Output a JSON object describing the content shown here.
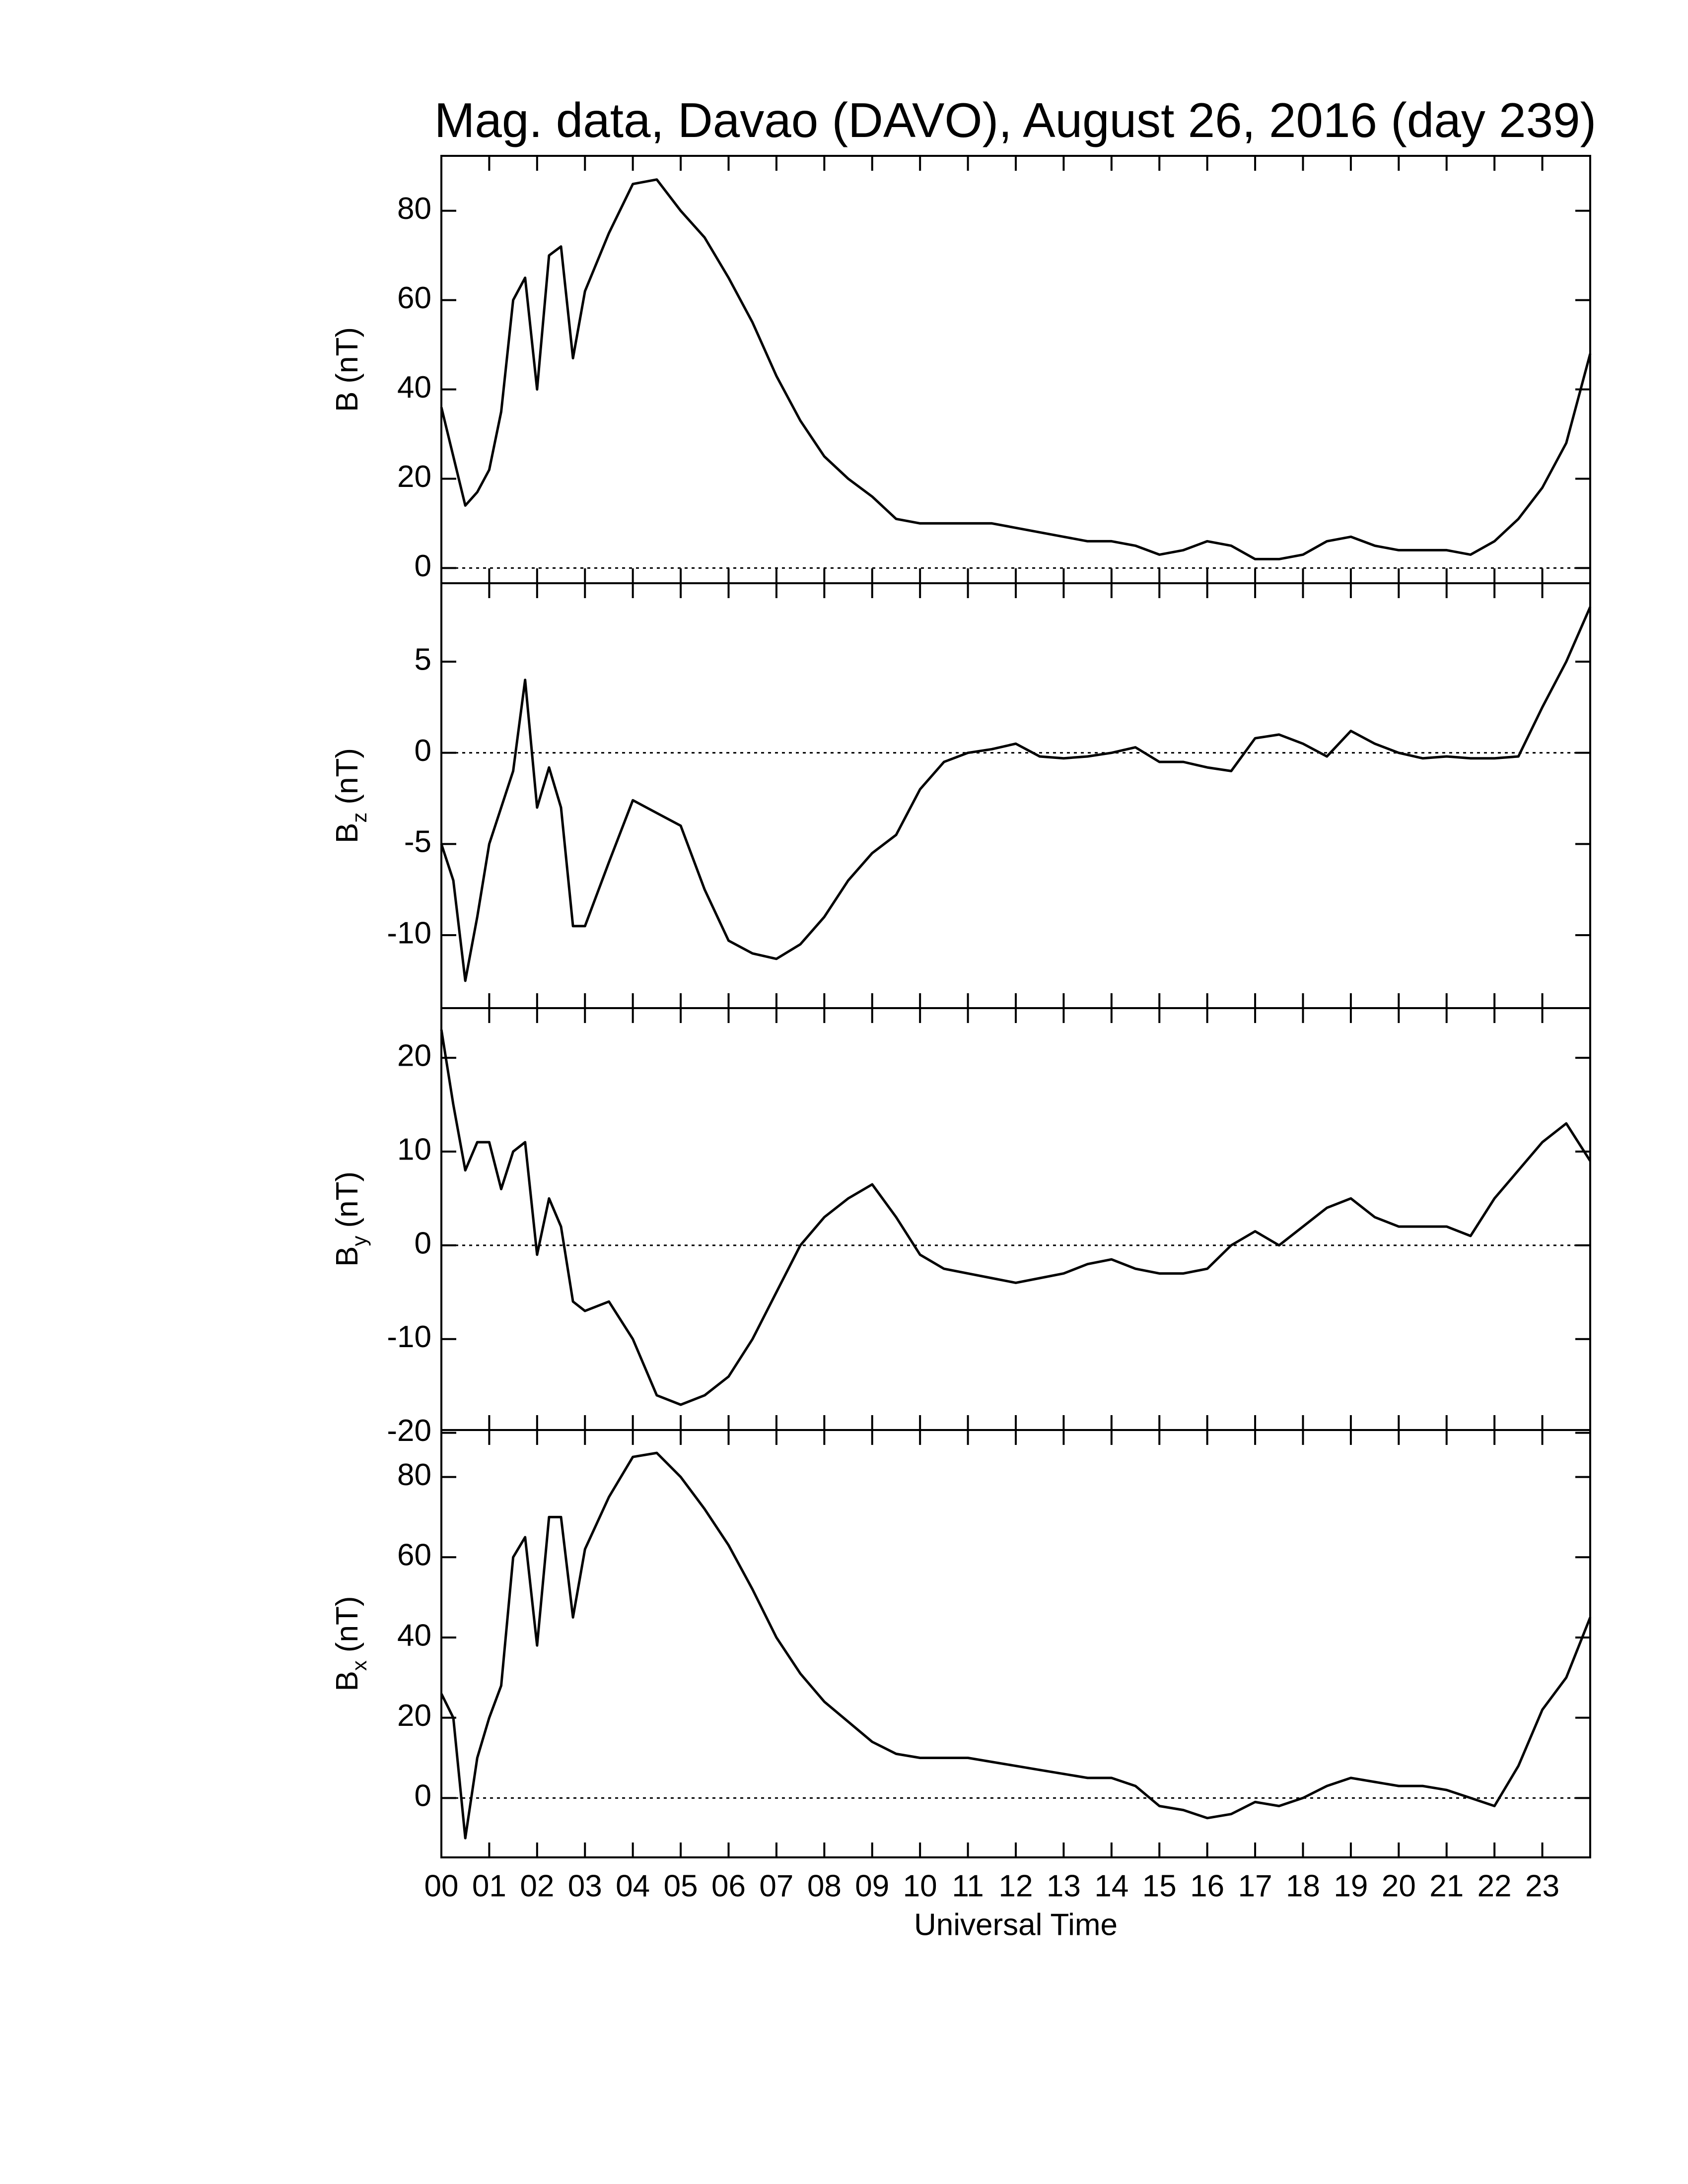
{
  "chart_data": [
    {
      "type": "line",
      "title": "Mag. data, Davao (DAVO), August 26, 2016 (day 239)",
      "ylabel": "B",
      "ylabel_unit": "(nT)",
      "color": "#000000",
      "reference_line": 0,
      "xlim": [
        0,
        24
      ],
      "ylim": [
        -3.4,
        92.3
      ],
      "yticks": [
        0,
        20,
        40,
        60,
        80
      ],
      "x": [
        0,
        0.25,
        0.5,
        0.75,
        1,
        1.25,
        1.5,
        1.75,
        2,
        2.25,
        2.5,
        2.75,
        3,
        3.5,
        4,
        4.5,
        5,
        5.5,
        6,
        6.5,
        7,
        7.5,
        8,
        8.5,
        9,
        9.5,
        10,
        10.5,
        11,
        11.5,
        12,
        12.5,
        13,
        13.5,
        14,
        14.5,
        15,
        15.5,
        16,
        16.5,
        17,
        17.5,
        18,
        18.5,
        19,
        19.5,
        20,
        20.5,
        21,
        21.5,
        22,
        22.5,
        23,
        23.5,
        24
      ],
      "values": [
        36,
        25,
        14,
        17,
        22,
        35,
        60,
        65,
        40,
        70,
        72,
        47,
        62,
        75,
        86,
        87,
        80,
        74,
        65,
        55,
        43,
        33,
        25,
        20,
        16,
        11,
        10,
        10,
        10,
        10,
        9,
        8,
        7,
        6,
        6,
        5,
        3,
        4,
        6,
        5,
        2,
        2,
        3,
        6,
        7,
        5,
        4,
        4,
        4,
        3,
        6,
        11,
        18,
        28,
        48
      ]
    },
    {
      "type": "line",
      "ylabel": "B",
      "ylabel_sub": "z",
      "ylabel_unit": "(nT)",
      "color": "#000000",
      "reference_line": 0,
      "xlim": [
        0,
        24
      ],
      "ylim": [
        -14.0,
        9.3
      ],
      "yticks": [
        -10,
        -5,
        0,
        5
      ],
      "x": [
        0,
        0.25,
        0.5,
        0.75,
        1,
        1.25,
        1.5,
        1.75,
        2,
        2.25,
        2.5,
        2.75,
        3,
        3.5,
        4,
        4.5,
        5,
        5.5,
        6,
        6.5,
        7,
        7.5,
        8,
        8.5,
        9,
        9.5,
        10,
        10.5,
        11,
        11.5,
        12,
        12.5,
        13,
        13.5,
        14,
        14.5,
        15,
        15.5,
        16,
        16.5,
        17,
        17.5,
        18,
        18.5,
        19,
        19.5,
        20,
        20.5,
        21,
        21.5,
        22,
        22.5,
        23,
        23.5,
        24
      ],
      "values": [
        -5,
        -7,
        -12.5,
        -9,
        -5,
        -3,
        -1,
        4,
        -3,
        -0.8,
        -3,
        -9.5,
        -9.5,
        -6,
        -2.6,
        -3.3,
        -4,
        -7.5,
        -10.3,
        -11,
        -11.3,
        -10.5,
        -9,
        -7,
        -5.5,
        -4.5,
        -2,
        -0.5,
        0,
        0.2,
        0.5,
        -0.2,
        -0.3,
        -0.2,
        0,
        0.3,
        -0.5,
        -0.5,
        -0.8,
        -1,
        0.8,
        1,
        0.5,
        -0.2,
        1.2,
        0.5,
        0,
        -0.3,
        -0.2,
        -0.3,
        -0.3,
        -0.2,
        2.5,
        5,
        8
      ]
    },
    {
      "type": "line",
      "ylabel": "B",
      "ylabel_sub": "y",
      "ylabel_unit": "(nT)",
      "color": "#000000",
      "reference_line": 0,
      "xlim": [
        0,
        24
      ],
      "ylim": [
        -19.7,
        25.3
      ],
      "yticks": [
        -20,
        -10,
        0,
        10,
        20
      ],
      "x": [
        0,
        0.25,
        0.5,
        0.75,
        1,
        1.25,
        1.5,
        1.75,
        2,
        2.25,
        2.5,
        2.75,
        3,
        3.5,
        4,
        4.5,
        5,
        5.5,
        6,
        6.5,
        7,
        7.5,
        8,
        8.5,
        9,
        9.5,
        10,
        10.5,
        11,
        11.5,
        12,
        12.5,
        13,
        13.5,
        14,
        14.5,
        15,
        15.5,
        16,
        16.5,
        17,
        17.5,
        18,
        18.5,
        19,
        19.5,
        20,
        20.5,
        21,
        21.5,
        22,
        22.5,
        23,
        23.5,
        24
      ],
      "values": [
        23,
        15,
        8,
        11,
        11,
        6,
        10,
        11,
        -1,
        5,
        2,
        -6,
        -7,
        -6,
        -10,
        -16,
        -17,
        -16,
        -14,
        -10,
        -5,
        0,
        3,
        5,
        6.5,
        3,
        -1,
        -2.5,
        -3,
        -3.5,
        -4,
        -3.5,
        -3,
        -2,
        -1.5,
        -2.5,
        -3,
        -3,
        -2.5,
        0,
        1.5,
        0,
        2,
        4,
        5,
        3,
        2,
        2,
        2,
        1,
        5,
        8,
        11,
        13,
        9
      ]
    },
    {
      "type": "line",
      "ylabel": "B",
      "ylabel_sub": "x",
      "ylabel_unit": "(nT)",
      "xlabel": "Universal Time",
      "color": "#000000",
      "reference_line": 0,
      "xlim": [
        0,
        24
      ],
      "ylim": [
        -14.8,
        91.7
      ],
      "yticks": [
        0,
        20,
        40,
        60,
        80
      ],
      "xticks": [
        {
          "value": 0,
          "label": "00"
        },
        {
          "value": 1,
          "label": "01"
        },
        {
          "value": 2,
          "label": "02"
        },
        {
          "value": 3,
          "label": "03"
        },
        {
          "value": 4,
          "label": "04"
        },
        {
          "value": 5,
          "label": "05"
        },
        {
          "value": 6,
          "label": "06"
        },
        {
          "value": 7,
          "label": "07"
        },
        {
          "value": 8,
          "label": "08"
        },
        {
          "value": 9,
          "label": "09"
        },
        {
          "value": 10,
          "label": "10"
        },
        {
          "value": 11,
          "label": "11"
        },
        {
          "value": 12,
          "label": "12"
        },
        {
          "value": 13,
          "label": "13"
        },
        {
          "value": 14,
          "label": "14"
        },
        {
          "value": 15,
          "label": "15"
        },
        {
          "value": 16,
          "label": "16"
        },
        {
          "value": 17,
          "label": "17"
        },
        {
          "value": 18,
          "label": "18"
        },
        {
          "value": 19,
          "label": "19"
        },
        {
          "value": 20,
          "label": "20"
        },
        {
          "value": 21,
          "label": "21"
        },
        {
          "value": 22,
          "label": "22"
        },
        {
          "value": 23,
          "label": "23"
        }
      ],
      "x": [
        0,
        0.25,
        0.5,
        0.75,
        1,
        1.25,
        1.5,
        1.75,
        2,
        2.25,
        2.5,
        2.75,
        3,
        3.5,
        4,
        4.5,
        5,
        5.5,
        6,
        6.5,
        7,
        7.5,
        8,
        8.5,
        9,
        9.5,
        10,
        10.5,
        11,
        11.5,
        12,
        12.5,
        13,
        13.5,
        14,
        14.5,
        15,
        15.5,
        16,
        16.5,
        17,
        17.5,
        18,
        18.5,
        19,
        19.5,
        20,
        20.5,
        21,
        21.5,
        22,
        22.5,
        23,
        23.5,
        24
      ],
      "values": [
        26,
        20,
        -10,
        10,
        20,
        28,
        60,
        65,
        38,
        70,
        70,
        45,
        62,
        75,
        85,
        86,
        80,
        72,
        63,
        52,
        40,
        31,
        24,
        19,
        14,
        11,
        10,
        10,
        10,
        9,
        8,
        7,
        6,
        5,
        5,
        3,
        -2,
        -3,
        -5,
        -4,
        -1,
        -2,
        0,
        3,
        5,
        4,
        3,
        3,
        2,
        0,
        -2,
        8,
        22,
        30,
        45
      ]
    }
  ]
}
